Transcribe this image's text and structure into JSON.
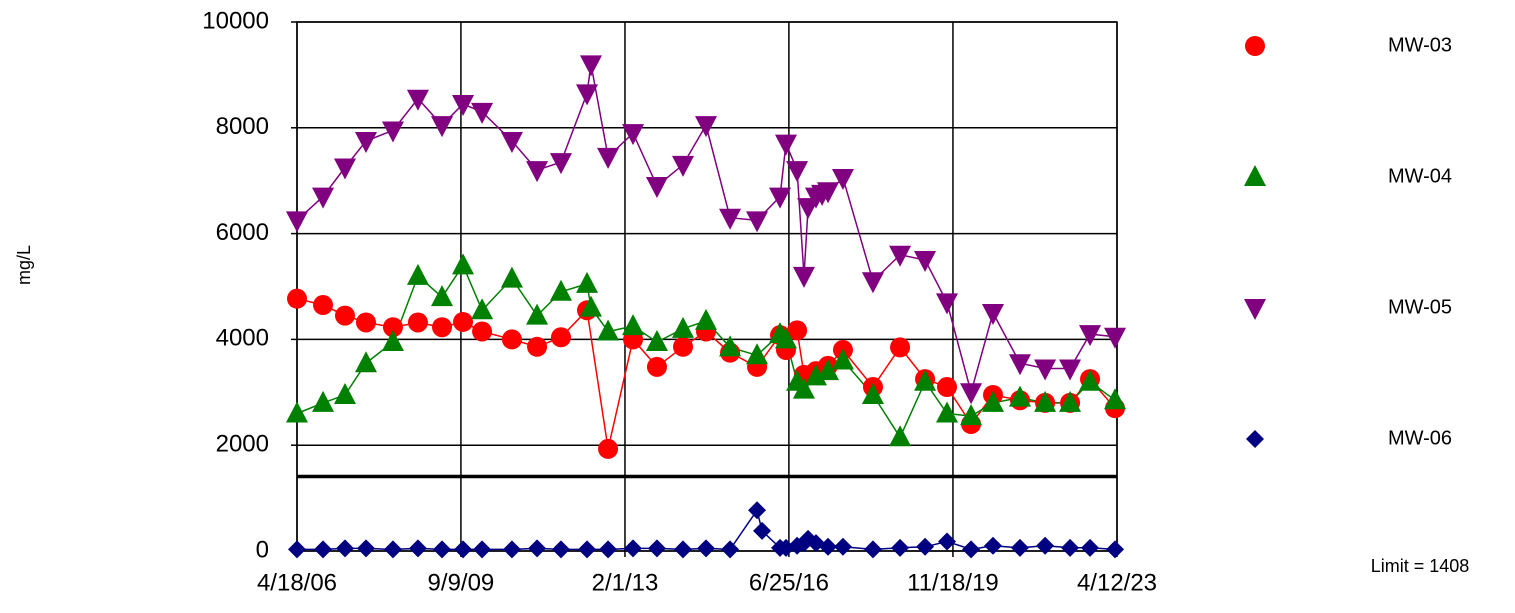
{
  "chart_data": {
    "type": "line",
    "y_label": "mg/L",
    "xlim": [
      "4/18/06",
      "4/12/23"
    ],
    "xticks": [
      "4/18/06",
      "9/9/09",
      "2/1/13",
      "6/25/16",
      "11/18/19",
      "4/12/23"
    ],
    "ylim": [
      0,
      10000
    ],
    "yticks": [
      0,
      2000,
      4000,
      6000,
      8000,
      10000
    ],
    "grid": true,
    "legend": "right",
    "limit": 1408,
    "limit_label": "Limit = 1408",
    "series": [
      {
        "name": "MW-03",
        "color": "#ff0000",
        "marker": "circle",
        "x": [
          "4/18/06",
          "11/1/06",
          "4/16/07",
          "9/22/07",
          "4/13/08",
          "10/19/08",
          "4/19/09",
          "9/25/09",
          "2/16/10",
          "9/30/10",
          "4/8/11",
          "10/6/11",
          "4/20/12",
          "9/26/12",
          "4/3/13",
          "10/1/13",
          "4/16/14",
          "10/7/14",
          "4/7/15",
          "10/28/15",
          "4/19/16",
          "6/3/16",
          "8/26/16",
          "10/17/16",
          "1/16/17",
          "4/17/17",
          "8/8/17",
          "3/23/18",
          "10/14/18",
          "4/21/19",
          "10/4/19",
          "4/3/20",
          "9/16/20",
          "4/8/21",
          "10/15/21",
          "4/22/22",
          "9/20/22",
          "3/28/23"
        ],
        "values": [
          4770,
          4650,
          4450,
          4320,
          4230,
          4320,
          4230,
          4330,
          4150,
          4000,
          3860,
          4040,
          4550,
          1930,
          4000,
          3480,
          3860,
          4150,
          3750,
          3480,
          4080,
          3800,
          4170,
          3330,
          3400,
          3500,
          3800,
          3100,
          3850,
          3250,
          3100,
          2400,
          2950,
          2850,
          2800,
          2800,
          3250,
          2700
        ]
      },
      {
        "name": "MW-04",
        "color": "#008000",
        "marker": "triangle-up",
        "x": [
          "4/18/06",
          "11/1/06",
          "4/16/07",
          "9/22/07",
          "4/13/08",
          "10/19/08",
          "4/19/09",
          "9/25/09",
          "2/16/10",
          "9/30/10",
          "4/8/11",
          "10/6/11",
          "4/20/12",
          "5/20/12",
          "9/26/12",
          "4/3/13",
          "10/1/13",
          "4/16/14",
          "10/7/14",
          "4/7/15",
          "10/28/15",
          "4/19/16",
          "6/3/16",
          "8/26/16",
          "10/17/16",
          "1/16/17",
          "4/17/17",
          "8/8/17",
          "3/23/18",
          "10/14/18",
          "4/21/19",
          "10/4/19",
          "4/3/20",
          "9/16/20",
          "4/8/21",
          "10/15/21",
          "4/22/22",
          "9/20/22",
          "3/28/23"
        ],
        "values": [
          2600,
          2800,
          2950,
          3550,
          3950,
          5200,
          4800,
          5400,
          4550,
          5150,
          4450,
          4900,
          5050,
          4600,
          4150,
          4250,
          3950,
          4200,
          4350,
          3850,
          3700,
          4100,
          4000,
          3200,
          3050,
          3300,
          3400,
          3600,
          2950,
          2150,
          3200,
          2600,
          2550,
          2800,
          2900,
          2800,
          2800,
          3200,
          2850
        ]
      },
      {
        "name": "MW-05",
        "color": "#800080",
        "marker": "triangle-down",
        "x": [
          "4/18/06",
          "11/1/06",
          "4/16/07",
          "9/22/07",
          "4/13/08",
          "10/19/08",
          "4/19/09",
          "9/25/09",
          "2/16/10",
          "9/30/10",
          "4/8/11",
          "10/6/11",
          "4/20/12",
          "5/20/12",
          "9/26/12",
          "4/3/13",
          "10/1/13",
          "4/16/14",
          "10/7/14",
          "4/7/15",
          "10/28/15",
          "4/19/16",
          "6/3/16",
          "8/26/16",
          "10/17/16",
          "11/17/16",
          "1/16/17",
          "3/3/17",
          "4/17/17",
          "8/8/17",
          "3/23/18",
          "10/14/18",
          "4/21/19",
          "10/4/19",
          "4/3/20",
          "9/16/20",
          "4/8/21",
          "10/15/21",
          "4/22/22",
          "9/20/22",
          "3/28/23"
        ],
        "values": [
          6250,
          6700,
          7250,
          7750,
          7950,
          8550,
          8050,
          8450,
          8300,
          7750,
          7200,
          7350,
          8650,
          9200,
          7450,
          7900,
          6900,
          7300,
          8050,
          6300,
          6250,
          6700,
          7700,
          7200,
          5200,
          6500,
          6700,
          6750,
          6800,
          7050,
          5100,
          5600,
          5500,
          4700,
          3000,
          4500,
          3550,
          3450,
          3450,
          4100,
          4050
        ]
      },
      {
        "name": "MW-06",
        "color": "#000080",
        "marker": "diamond",
        "x": [
          "4/18/06",
          "11/1/06",
          "4/16/07",
          "9/22/07",
          "4/13/08",
          "10/19/08",
          "4/19/09",
          "9/25/09",
          "2/16/10",
          "9/30/10",
          "4/8/11",
          "10/6/11",
          "4/20/12",
          "9/26/12",
          "4/3/13",
          "10/1/13",
          "4/16/14",
          "10/7/14",
          "4/7/15",
          "10/28/15",
          "12/5/15",
          "4/19/16",
          "6/3/16",
          "8/26/16",
          "10/17/16",
          "11/17/16",
          "1/16/17",
          "4/17/17",
          "8/8/17",
          "3/23/18",
          "10/14/18",
          "4/21/19",
          "10/4/19",
          "4/3/20",
          "9/16/20",
          "4/8/21",
          "10/15/21",
          "4/22/22",
          "9/20/22",
          "3/28/23"
        ],
        "values": [
          30,
          30,
          50,
          50,
          30,
          50,
          30,
          30,
          30,
          30,
          50,
          30,
          30,
          30,
          50,
          50,
          30,
          50,
          30,
          770,
          380,
          60,
          60,
          100,
          150,
          230,
          150,
          80,
          80,
          30,
          60,
          80,
          180,
          30,
          100,
          60,
          100,
          60,
          60,
          30
        ]
      }
    ]
  }
}
